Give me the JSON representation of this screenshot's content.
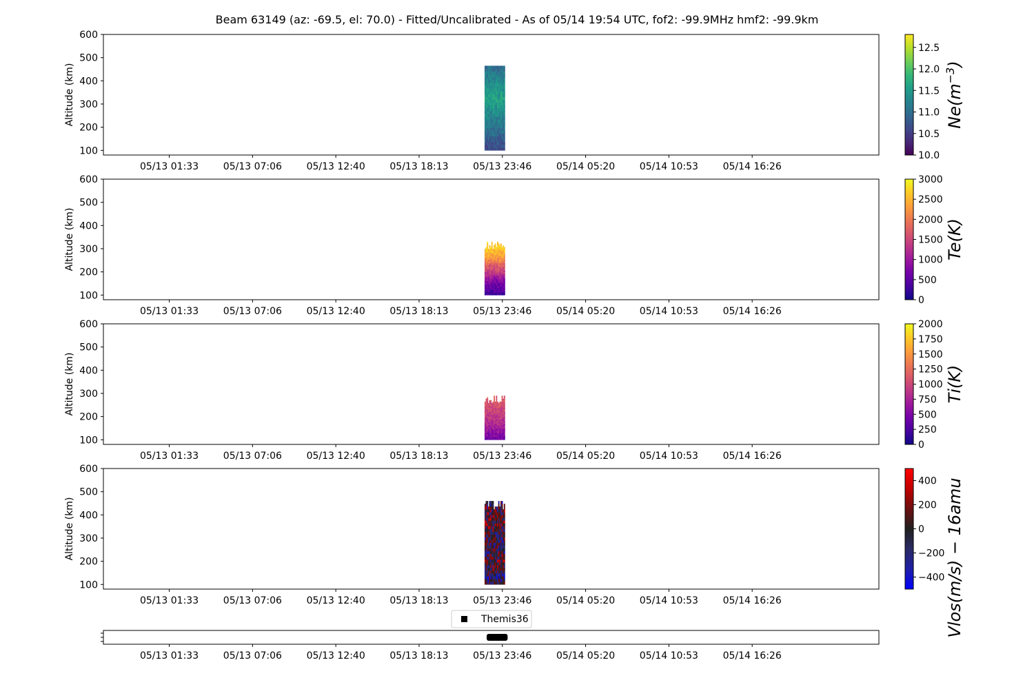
{
  "chart_data": {
    "type": "heatmap",
    "title": "Beam 63149 (az: -69.5, el: 70.0) - Fitted/Uncalibrated - As of 05/14 19:54 UTC, fof2: -99.9MHz  hmf2: -99.9km",
    "x_tick_labels": [
      "05/13 01:33",
      "05/13 07:06",
      "05/13 12:40",
      "05/13 18:13",
      "05/13 23:46",
      "05/14 05:20",
      "05/14 10:53",
      "05/14 16:26"
    ],
    "x_range_hours": [
      -4.4,
      47.4
    ],
    "data_time_range_hours": [
      21.06,
      22.42
    ],
    "panels": [
      {
        "ylabel": "Altitude (km)",
        "ylim": [
          80,
          600
        ],
        "y_ticks": [
          100,
          200,
          300,
          400,
          500,
          600
        ],
        "colorbar": {
          "label": "Ne(m^-3)",
          "label_parts": {
            "base": "Ne(m",
            "sup": "−3",
            "end": ")"
          },
          "colormap": "viridis",
          "range": [
            10.0,
            12.8
          ],
          "ticks": [
            "10.0",
            "10.5",
            "11.0",
            "11.5",
            "12.0",
            "12.5"
          ],
          "tick_values": [
            10.0,
            10.5,
            11.0,
            11.5,
            12.0,
            12.5
          ]
        },
        "data_altitude_range": [
          100,
          465
        ],
        "typical_values": [
          10.6,
          11.0,
          11.3,
          11.6,
          11.4,
          11.0
        ]
      },
      {
        "ylabel": "Altitude (km)",
        "ylim": [
          80,
          600
        ],
        "y_ticks": [
          100,
          200,
          300,
          400,
          500,
          600
        ],
        "colorbar": {
          "label": "Te(K)",
          "label_parts": {
            "base": "Te(K)",
            "sup": "",
            "end": ""
          },
          "colormap": "plasma",
          "range": [
            0,
            3000
          ],
          "ticks": [
            "0",
            "500",
            "1000",
            "1500",
            "2000",
            "2500",
            "3000"
          ],
          "tick_values": [
            0,
            500,
            1000,
            1500,
            2000,
            2500,
            3000
          ]
        },
        "data_altitude_range": [
          100,
          330
        ],
        "typical_values": [
          300,
          800,
          1600,
          2400,
          2800
        ]
      },
      {
        "ylabel": "Altitude (km)",
        "ylim": [
          80,
          600
        ],
        "y_ticks": [
          100,
          200,
          300,
          400,
          500,
          600
        ],
        "colorbar": {
          "label": "Ti(K)",
          "label_parts": {
            "base": "Ti(K)",
            "sup": "",
            "end": ""
          },
          "colormap": "plasma",
          "range": [
            0,
            2000
          ],
          "ticks": [
            "0",
            "250",
            "500",
            "750",
            "1000",
            "1250",
            "1500",
            "1750",
            "2000"
          ],
          "tick_values": [
            0,
            250,
            500,
            750,
            1000,
            1250,
            1500,
            1750,
            2000
          ]
        },
        "data_altitude_range": [
          100,
          290
        ],
        "typical_values": [
          450,
          700,
          900,
          1050,
          1150
        ]
      },
      {
        "ylabel": "Altitude (km)",
        "ylim": [
          80,
          600
        ],
        "y_ticks": [
          100,
          200,
          300,
          400,
          500,
          600
        ],
        "colorbar": {
          "label": "Vlos(m/s) − 16amu",
          "label_parts": {
            "base": "Vlos(m/s) − 16amu",
            "sup": "",
            "end": ""
          },
          "colormap": "blue-black-red",
          "range": [
            -500,
            500
          ],
          "ticks": [
            "−400",
            "−200",
            "0",
            "200",
            "400"
          ],
          "tick_values": [
            -400,
            -200,
            0,
            200,
            400
          ]
        },
        "data_altitude_range": [
          100,
          460
        ],
        "typical_values": [
          -150,
          50,
          -100,
          100,
          -50
        ]
      }
    ],
    "timeline": {
      "legend_label": "Themis36",
      "segment_hours": [
        21.2,
        22.6
      ]
    }
  }
}
